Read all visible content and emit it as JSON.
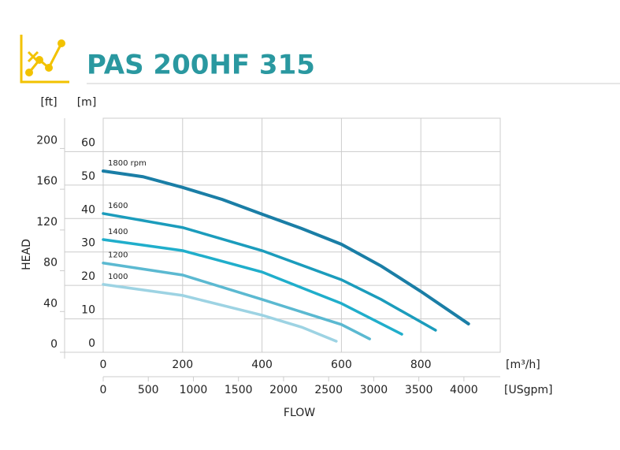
{
  "chart_data": {
    "type": "line",
    "title": "PAS 200HF 315",
    "ylabel": "HEAD",
    "xlabel": "FLOW",
    "yunit": "[m]",
    "y2unit": "[ft]",
    "xunit": "[m³/h]",
    "x2unit": "[USgpm]",
    "xlim": [
      0,
      1000
    ],
    "xticks": [
      0,
      200,
      400,
      600,
      800
    ],
    "x2lim": [
      0,
      4403
    ],
    "x2ticks": [
      0,
      500,
      1000,
      1500,
      2000,
      2500,
      3000,
      3500,
      4000
    ],
    "ylim": [
      0,
      70
    ],
    "yticks": [
      0,
      10,
      20,
      30,
      40,
      50,
      60
    ],
    "y2lim": [
      0,
      229.7
    ],
    "y2ticks": [
      0,
      40,
      80,
      120,
      160,
      200
    ],
    "grid": true,
    "series": [
      {
        "name": "1800 rpm",
        "color": "#1a7ea6",
        "x": [
          0,
          100,
          200,
          300,
          400,
          500,
          600,
          700,
          800,
          920
        ],
        "values": [
          54.2,
          52.5,
          49.3,
          45.7,
          41.3,
          37,
          32.3,
          25.8,
          18.2,
          8.5
        ]
      },
      {
        "name": "1600",
        "color": "#1b9cbc",
        "x": [
          0,
          200,
          400,
          600,
          700,
          837
        ],
        "values": [
          41.5,
          37.3,
          30.4,
          21.7,
          15.8,
          6.6
        ]
      },
      {
        "name": "1400",
        "color": "#20aecb",
        "x": [
          0,
          200,
          400,
          600,
          752
        ],
        "values": [
          33.7,
          30.4,
          24,
          14.6,
          5.4
        ]
      },
      {
        "name": "1200",
        "color": "#5bb9d1",
        "x": [
          0,
          200,
          400,
          600,
          671
        ],
        "values": [
          26.7,
          23.1,
          15.8,
          8.3,
          4
        ]
      },
      {
        "name": "1000",
        "color": "#9dd3e3",
        "x": [
          0,
          200,
          400,
          500,
          587
        ],
        "values": [
          20.3,
          17,
          11.1,
          7.5,
          3.3
        ]
      }
    ]
  }
}
